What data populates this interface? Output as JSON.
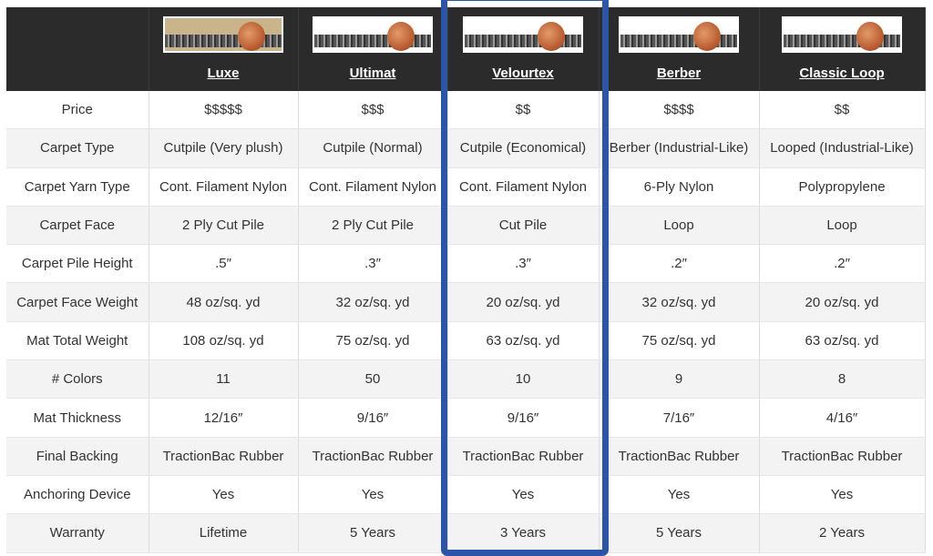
{
  "colors": {
    "header_bg": "#2b2b2b",
    "highlight": "#2b55a8"
  },
  "products": [
    {
      "name": "Luxe",
      "thumb": "#c9b48c"
    },
    {
      "name": "Ultimat",
      "thumb": "#ffffff"
    },
    {
      "name": "Velourtex",
      "thumb": "#ffffff"
    },
    {
      "name": "Berber",
      "thumb": "#ffffff"
    },
    {
      "name": "Classic Loop",
      "thumb": "#ffffff"
    }
  ],
  "highlighted_product": "Velourtex",
  "rows": [
    {
      "label": "Price",
      "values": [
        "$$$$$",
        "$$$",
        "$$",
        "$$$$",
        "$$"
      ]
    },
    {
      "label": "Carpet Type",
      "values": [
        "Cutpile (Very plush)",
        "Cutpile (Normal)",
        "Cutpile (Economical)",
        "Berber (Industrial-Like)",
        "Looped (Industrial-Like)"
      ]
    },
    {
      "label": "Carpet Yarn Type",
      "values": [
        "Cont. Filament Nylon",
        "Cont. Filament Nylon",
        "Cont. Filament Nylon",
        "6-Ply Nylon",
        "Polypropylene"
      ]
    },
    {
      "label": "Carpet Face",
      "values": [
        "2 Ply Cut Pile",
        "2 Ply Cut Pile",
        "Cut Pile",
        "Loop",
        "Loop"
      ]
    },
    {
      "label": "Carpet Pile Height",
      "values": [
        ".5″",
        ".3″",
        ".3″",
        ".2″",
        ".2″"
      ]
    },
    {
      "label": "Carpet Face Weight",
      "values": [
        "48 oz/sq. yd",
        "32 oz/sq. yd",
        "20 oz/sq. yd",
        "32 oz/sq. yd",
        "20 oz/sq. yd"
      ]
    },
    {
      "label": "Mat Total Weight",
      "values": [
        "108 oz/sq. yd",
        "75 oz/sq. yd",
        "63 oz/sq. yd",
        "75 oz/sq. yd",
        "63 oz/sq. yd"
      ]
    },
    {
      "label": "# Colors",
      "values": [
        "11",
        "50",
        "10",
        "9",
        "8"
      ]
    },
    {
      "label": "Mat Thickness",
      "values": [
        "12/16″",
        "9/16″",
        "9/16″",
        "7/16″",
        "4/16″"
      ]
    },
    {
      "label": "Final Backing",
      "values": [
        "TractionBac Rubber",
        "TractionBac Rubber",
        "TractionBac Rubber",
        "TractionBac Rubber",
        "TractionBac Rubber"
      ]
    },
    {
      "label": "Anchoring Device",
      "values": [
        "Yes",
        "Yes",
        "Yes",
        "Yes",
        "Yes"
      ]
    },
    {
      "label": "Warranty",
      "values": [
        "Lifetime",
        "5 Years",
        "3 Years",
        "5 Years",
        "2 Years"
      ]
    }
  ]
}
